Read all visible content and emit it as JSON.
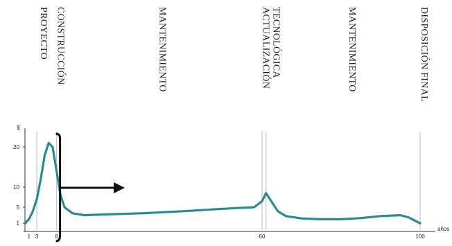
{
  "chart_data": {
    "type": "line",
    "title": "",
    "ylabel": "$",
    "xlabel": "años",
    "x_ticks": [
      "1",
      "3",
      "8",
      "60",
      "100"
    ],
    "y_ticks": [
      "1",
      "5",
      "10",
      "20"
    ],
    "xlim": [
      0,
      101
    ],
    "ylim": [
      0,
      25
    ],
    "phases": [
      {
        "label": "PROYECTO",
        "x": 3
      },
      {
        "label": "CONSTRUCCIÓN",
        "x": 8
      },
      {
        "label": "MANTENIMIENTO",
        "x": 35
      },
      {
        "label": "ACTUALIZACIÓN TECNOLÓGICA",
        "x": 61
      },
      {
        "label": "MANTENIMIENTO",
        "x": 83
      },
      {
        "label": "DISPOSICIÓN FINAL",
        "x": 100
      }
    ],
    "series": [
      {
        "color": "#2a8a91",
        "x": [
          0,
          1,
          2,
          3,
          4,
          5,
          6,
          7,
          8,
          9,
          10,
          12,
          15,
          20,
          30,
          40,
          50,
          58,
          60,
          61,
          62,
          64,
          66,
          70,
          75,
          80,
          85,
          90,
          95,
          97,
          100
        ],
        "y": [
          1,
          2,
          4,
          7,
          12,
          18,
          21,
          20,
          14,
          8,
          5,
          3.5,
          3,
          3.2,
          3.5,
          4,
          4.6,
          5,
          6.5,
          8.5,
          7,
          4,
          2.8,
          2.2,
          2,
          2,
          2.3,
          2.8,
          3,
          2.5,
          1
        ]
      }
    ]
  },
  "colors": {
    "line": "#2a8a91",
    "guides": "#c8c8c8",
    "bracket": "#111111"
  }
}
